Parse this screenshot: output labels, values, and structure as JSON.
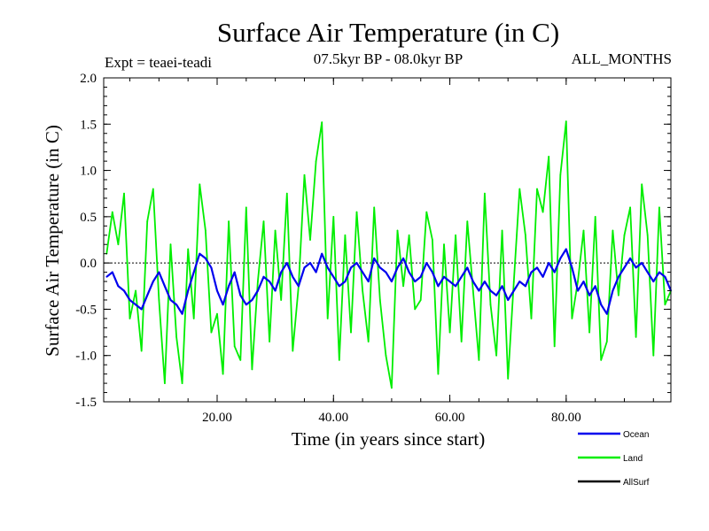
{
  "chart_data": {
    "type": "line",
    "title": "Surface Air Temperature (in C)",
    "subtitle_left": "Expt = teaei-teadi",
    "subtitle_center": "07.5kyr BP - 08.0kyr BP",
    "subtitle_right": "ALL_MONTHS",
    "xlabel": "Time (in years since start)",
    "ylabel": "Surface Air Temperature (in C)",
    "xlim": [
      0.5,
      98
    ],
    "ylim": [
      -1.5,
      2.0
    ],
    "x_ticks": [
      20,
      40,
      60,
      80
    ],
    "x_tick_labels": [
      "20.00",
      "40.00",
      "60.00",
      "80.00"
    ],
    "y_ticks": [
      -1.5,
      -1.0,
      -0.5,
      0.0,
      0.5,
      1.0,
      1.5,
      2.0
    ],
    "y_tick_labels": [
      "-1.5",
      "-1.0",
      "-0.5",
      "0.0",
      "0.5",
      "1.0",
      "1.5",
      "2.0"
    ],
    "reference_line": 0.0,
    "series": [
      {
        "name": "Land",
        "color": "#00ee00",
        "x": [
          1,
          2,
          3,
          4,
          5,
          6,
          7,
          8,
          9,
          10,
          11,
          12,
          13,
          14,
          15,
          16,
          17,
          18,
          19,
          20,
          21,
          22,
          23,
          24,
          25,
          26,
          27,
          28,
          29,
          30,
          31,
          32,
          33,
          34,
          35,
          36,
          37,
          38,
          39,
          40,
          41,
          42,
          43,
          44,
          45,
          46,
          47,
          48,
          49,
          50,
          51,
          52,
          53,
          54,
          55,
          56,
          57,
          58,
          59,
          60,
          61,
          62,
          63,
          64,
          65,
          66,
          67,
          68,
          69,
          70,
          71,
          72,
          73,
          74,
          75,
          76,
          77,
          78,
          79,
          80,
          81,
          82,
          83,
          84,
          85,
          86,
          87,
          88,
          89,
          90,
          91,
          92,
          93,
          94,
          95,
          96,
          97,
          98
        ],
        "y": [
          0.1,
          0.55,
          0.2,
          0.75,
          -0.6,
          -0.3,
          -0.95,
          0.45,
          0.8,
          -0.4,
          -1.3,
          0.2,
          -0.8,
          -1.3,
          0.15,
          -0.6,
          0.85,
          0.35,
          -0.75,
          -0.55,
          -1.2,
          0.45,
          -0.9,
          -1.05,
          0.6,
          -1.15,
          -0.2,
          0.45,
          -0.85,
          0.35,
          -0.4,
          0.75,
          -0.95,
          -0.25,
          0.95,
          0.25,
          1.1,
          1.52,
          -0.6,
          0.5,
          -1.05,
          0.3,
          -0.75,
          0.55,
          -0.3,
          -0.85,
          0.6,
          -0.4,
          -1.0,
          -1.35,
          0.35,
          -0.25,
          0.3,
          -0.5,
          -0.4,
          0.55,
          0.25,
          -1.2,
          0.2,
          -0.75,
          0.3,
          -0.85,
          0.45,
          -0.3,
          -1.05,
          0.75,
          -0.45,
          -1.0,
          0.35,
          -1.25,
          -0.2,
          0.8,
          0.3,
          -0.6,
          0.8,
          0.55,
          1.15,
          -0.9,
          0.95,
          1.53,
          -0.6,
          -0.2,
          0.35,
          -0.75,
          0.5,
          -1.05,
          -0.85,
          0.35,
          -0.35,
          0.3,
          0.6,
          -0.8,
          0.85,
          0.3,
          -1.0,
          0.6,
          -0.45,
          -0.3
        ]
      },
      {
        "name": "Ocean",
        "color": "#0000ee",
        "x": [
          1,
          2,
          3,
          4,
          5,
          6,
          7,
          8,
          9,
          10,
          11,
          12,
          13,
          14,
          15,
          16,
          17,
          18,
          19,
          20,
          21,
          22,
          23,
          24,
          25,
          26,
          27,
          28,
          29,
          30,
          31,
          32,
          33,
          34,
          35,
          36,
          37,
          38,
          39,
          40,
          41,
          42,
          43,
          44,
          45,
          46,
          47,
          48,
          49,
          50,
          51,
          52,
          53,
          54,
          55,
          56,
          57,
          58,
          59,
          60,
          61,
          62,
          63,
          64,
          65,
          66,
          67,
          68,
          69,
          70,
          71,
          72,
          73,
          74,
          75,
          76,
          77,
          78,
          79,
          80,
          81,
          82,
          83,
          84,
          85,
          86,
          87,
          88,
          89,
          90,
          91,
          92,
          93,
          94,
          95,
          96,
          97,
          98
        ],
        "y": [
          -0.15,
          -0.1,
          -0.25,
          -0.3,
          -0.4,
          -0.45,
          -0.5,
          -0.35,
          -0.2,
          -0.1,
          -0.25,
          -0.4,
          -0.45,
          -0.55,
          -0.3,
          -0.1,
          0.1,
          0.05,
          -0.05,
          -0.3,
          -0.45,
          -0.25,
          -0.1,
          -0.35,
          -0.45,
          -0.4,
          -0.3,
          -0.15,
          -0.2,
          -0.3,
          -0.1,
          0.0,
          -0.15,
          -0.25,
          -0.05,
          0.0,
          -0.1,
          0.1,
          -0.05,
          -0.15,
          -0.25,
          -0.2,
          -0.05,
          0.0,
          -0.1,
          -0.2,
          0.05,
          -0.05,
          -0.1,
          -0.2,
          -0.05,
          0.05,
          -0.1,
          -0.2,
          -0.15,
          0.0,
          -0.1,
          -0.25,
          -0.15,
          -0.2,
          -0.25,
          -0.15,
          -0.05,
          -0.2,
          -0.3,
          -0.2,
          -0.3,
          -0.35,
          -0.25,
          -0.4,
          -0.3,
          -0.2,
          -0.25,
          -0.1,
          -0.05,
          -0.15,
          0.0,
          -0.1,
          0.05,
          0.15,
          -0.05,
          -0.3,
          -0.2,
          -0.35,
          -0.25,
          -0.45,
          -0.55,
          -0.3,
          -0.15,
          -0.05,
          0.05,
          -0.05,
          0.0,
          -0.1,
          -0.2,
          -0.1,
          -0.15,
          -0.3
        ]
      },
      {
        "name": "AllSurf",
        "color": "#000000",
        "x": [],
        "y": []
      }
    ],
    "legend": [
      {
        "label": "Ocean",
        "color": "#0000ee"
      },
      {
        "label": "Land",
        "color": "#00ee00"
      },
      {
        "label": "AllSurf",
        "color": "#000000"
      }
    ],
    "legend_position": "bottom-right"
  }
}
